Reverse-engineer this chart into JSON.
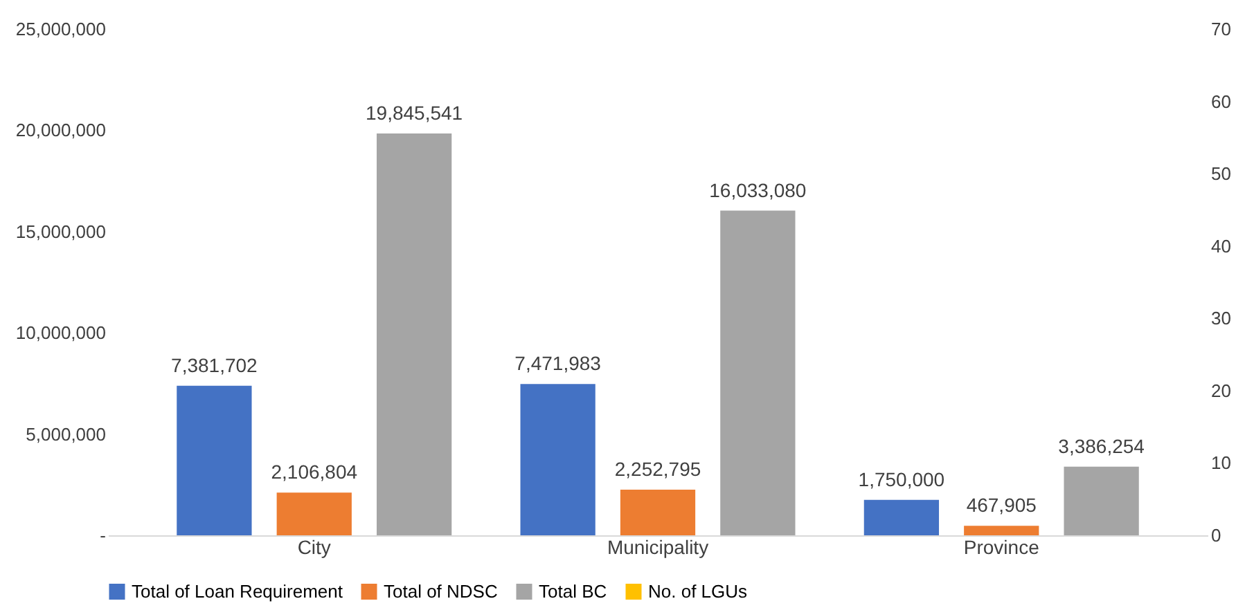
{
  "chart_data": {
    "type": "bar",
    "categories": [
      "City",
      "Municipality",
      "Province"
    ],
    "series": [
      {
        "name": "Total of Loan Requirement",
        "color": "#4472c4",
        "values": [
          7381702,
          7471983,
          1750000
        ],
        "value_labels": [
          "7,381,702",
          "7,471,983",
          "1,750,000"
        ]
      },
      {
        "name": "Total of NDSC",
        "color": "#ed7d31",
        "values": [
          2106804,
          2252795,
          467905
        ],
        "value_labels": [
          "2,106,804",
          "2,252,795",
          "467,905"
        ]
      },
      {
        "name": "Total BC",
        "color": "#a5a5a5",
        "values": [
          19845541,
          16033080,
          3386254
        ],
        "value_labels": [
          "19,845,541",
          "16,033,080",
          "3,386,254"
        ]
      },
      {
        "name": "No. of LGUs",
        "color": "#ffc000",
        "type": "line",
        "axis": "y2",
        "values": [
          null,
          null,
          null
        ]
      }
    ],
    "ylim": [
      0,
      25000000
    ],
    "yticks": [
      {
        "value": 0,
        "label": "-"
      },
      {
        "value": 5000000,
        "label": "5,000,000"
      },
      {
        "value": 10000000,
        "label": "10,000,000"
      },
      {
        "value": 15000000,
        "label": "15,000,000"
      },
      {
        "value": 20000000,
        "label": "20,000,000"
      },
      {
        "value": 25000000,
        "label": "25,000,000"
      }
    ],
    "y2lim": [
      0,
      70
    ],
    "y2ticks": [
      0,
      10,
      20,
      30,
      40,
      50,
      60,
      70
    ],
    "legend": "bottom",
    "grid": false
  }
}
